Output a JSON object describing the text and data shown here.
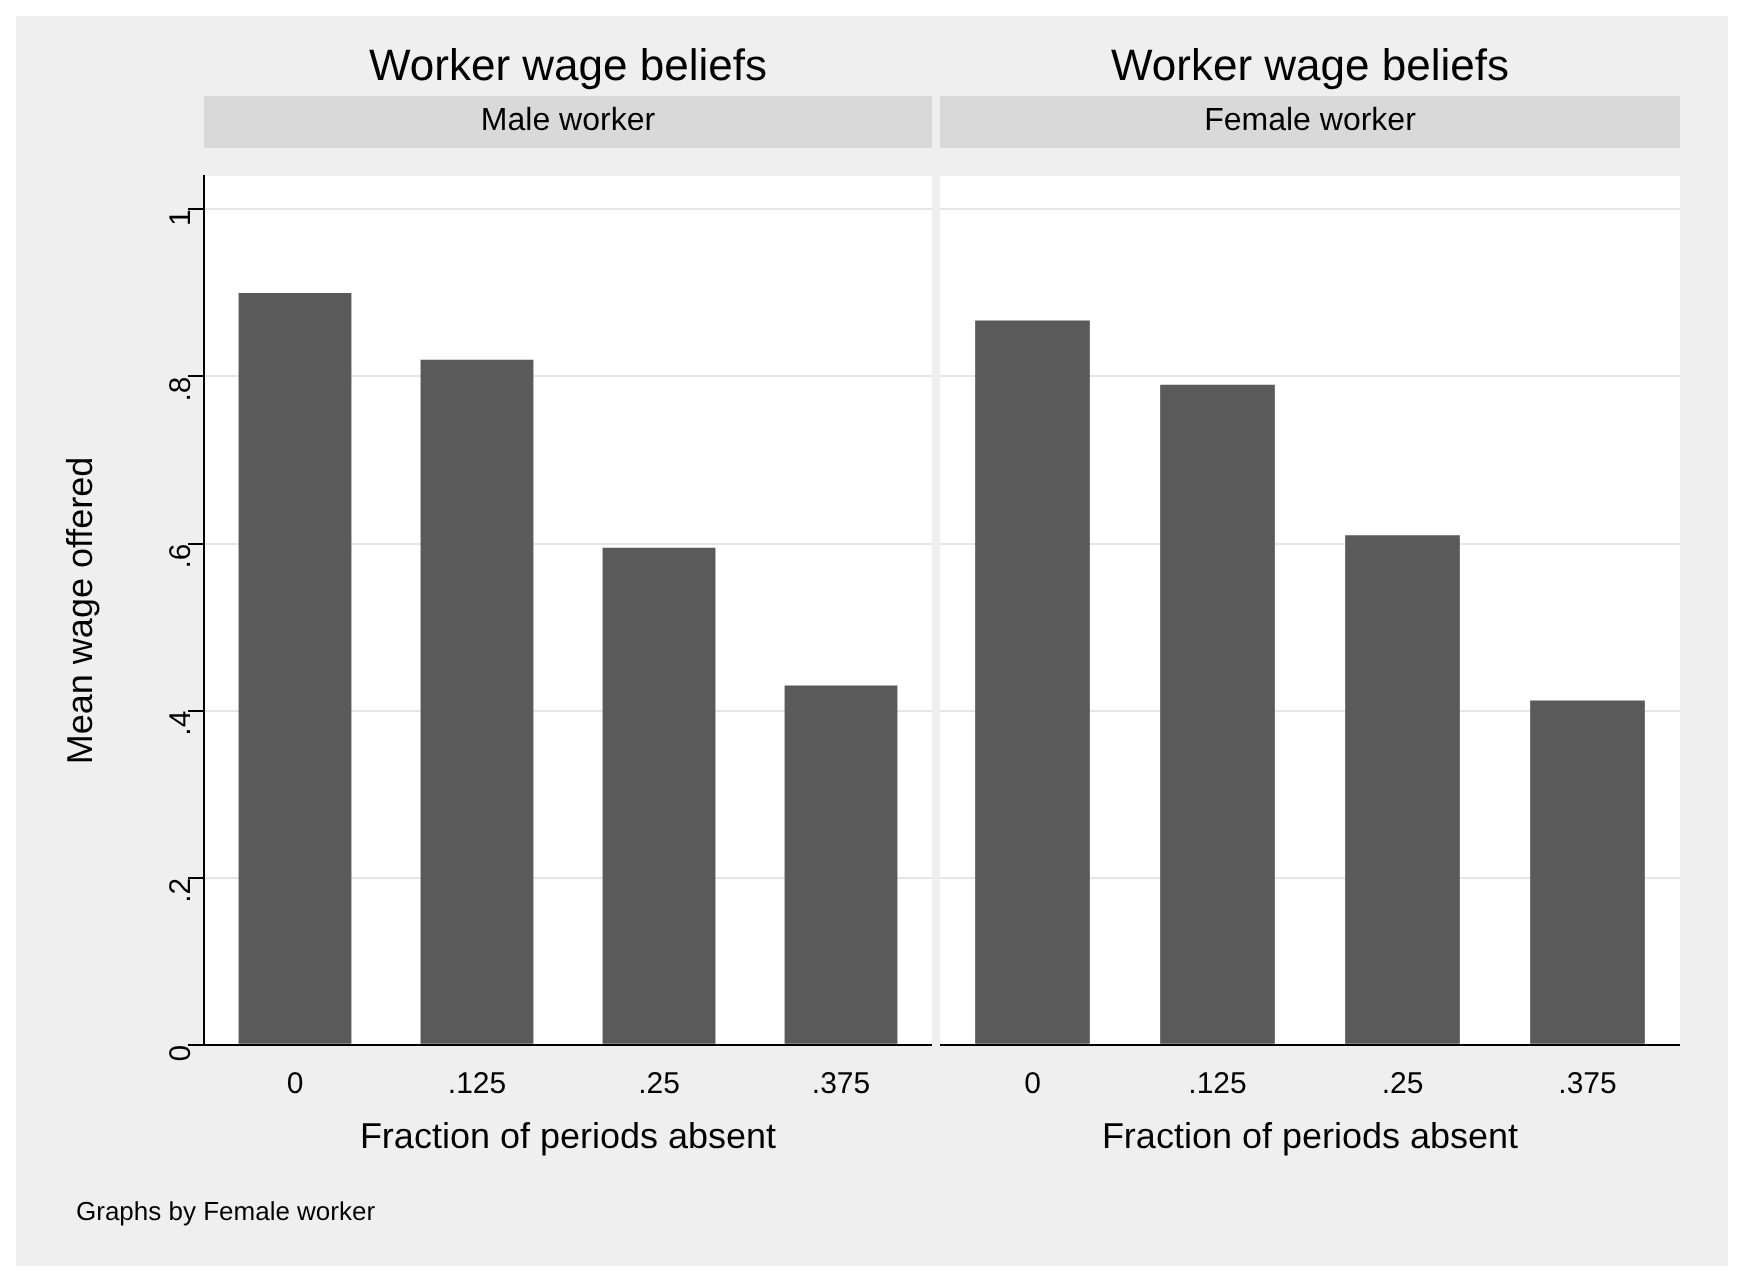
{
  "chart_data": [
    {
      "type": "bar",
      "title": "Worker wage beliefs",
      "subtitle": "Male worker",
      "xlabel": "Fraction of periods absent",
      "ylabel": "Mean wage offered",
      "categories": [
        "0",
        ".125",
        ".25",
        ".375"
      ],
      "values": [
        0.9,
        0.82,
        0.595,
        0.43
      ],
      "color": "#5a5a5a",
      "ylim": [
        0,
        1.04
      ],
      "yticks": [
        0,
        {
          "value": 0.2,
          "label": ".2"
        },
        {
          "value": 0.4,
          "label": ".4"
        },
        {
          "value": 0.6,
          "label": ".6"
        },
        {
          "value": 0.8,
          "label": ".8"
        },
        1
      ],
      "grid": "y",
      "annotations": [
        "Graphs by Female worker"
      ]
    },
    {
      "type": "bar",
      "title": "Worker wage beliefs",
      "subtitle": "Female worker",
      "xlabel": "Fraction of periods absent",
      "categories": [
        "0",
        ".125",
        ".25",
        ".375"
      ],
      "values": [
        0.867,
        0.79,
        0.61,
        0.412
      ],
      "color": "#5a5a5a",
      "ylim": [
        0,
        1.04
      ],
      "yticks": [
        {
          "value": 0,
          "label": null
        },
        {
          "value": 0.2,
          "label": null
        },
        {
          "value": 0.4,
          "label": null
        },
        {
          "value": 0.6,
          "label": null
        },
        {
          "value": 0.8,
          "label": null
        },
        {
          "value": 1,
          "label": null
        }
      ],
      "grid": "y",
      "tick_labels": "x"
    }
  ]
}
